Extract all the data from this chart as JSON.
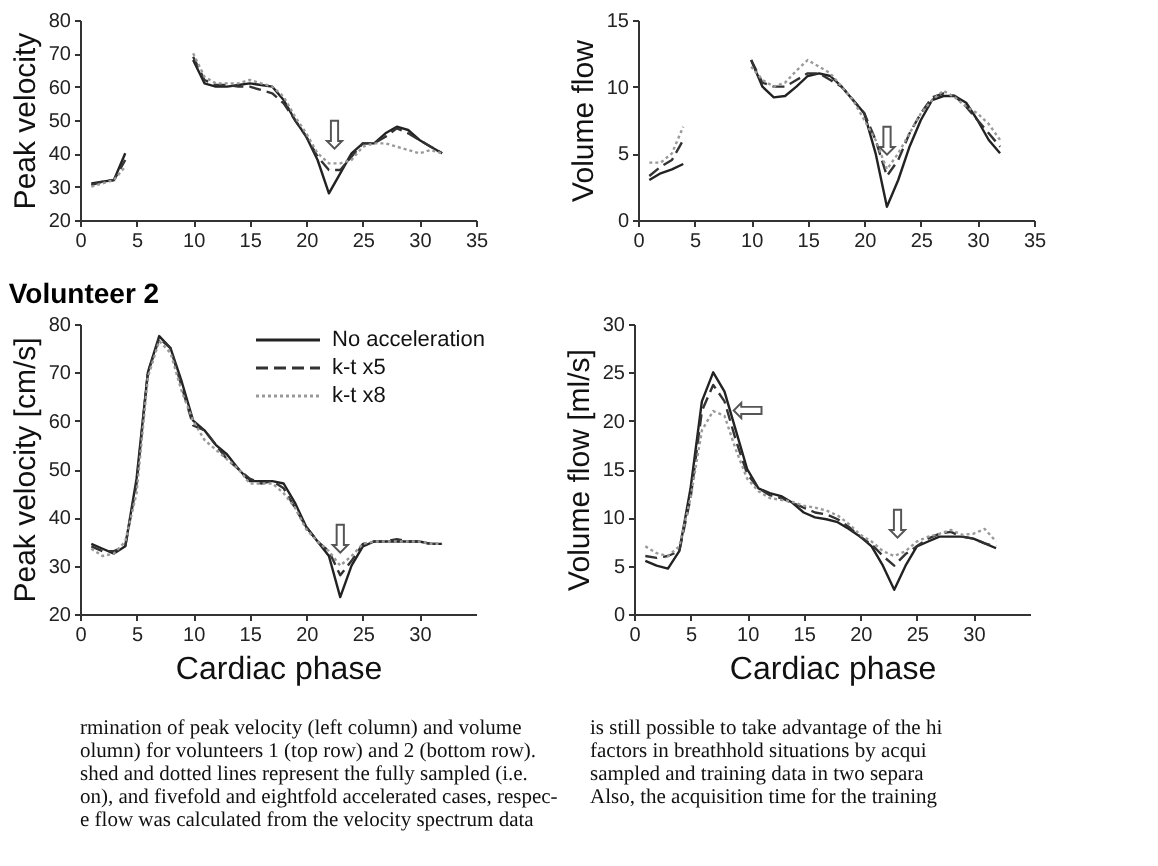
{
  "chart_data": [
    {
      "type": "line",
      "ylabel": "Peak velocity",
      "x": [
        1,
        2,
        3,
        4,
        5,
        6,
        7,
        8,
        9,
        10,
        11,
        12,
        13,
        14,
        15,
        16,
        17,
        18,
        19,
        20,
        21,
        22,
        23,
        24,
        25,
        26,
        27,
        28,
        29,
        30,
        31,
        32
      ],
      "xlim": [
        0,
        35
      ],
      "xticks": [
        0,
        5,
        10,
        15,
        20,
        25,
        30,
        35
      ],
      "ylim": [
        20,
        80
      ],
      "yticks": [
        20,
        30,
        40,
        50,
        60,
        70,
        80
      ],
      "grid": false,
      "legend": false,
      "series": [
        {
          "color": "#222222",
          "line_style": "solid",
          "values": [
            31,
            31.5,
            32,
            40,
            null,
            null,
            null,
            null,
            null,
            68,
            61,
            60,
            60,
            60.5,
            61,
            60.5,
            60,
            56,
            50,
            45,
            38,
            28,
            34,
            40,
            43,
            43,
            46,
            48,
            47,
            44,
            42,
            40
          ]
        },
        {
          "color": "#333333",
          "line_style": "dashed",
          "values": [
            30.5,
            31.5,
            32,
            38,
            null,
            null,
            null,
            null,
            null,
            69,
            62,
            60.5,
            60.5,
            60,
            60,
            59,
            58,
            55,
            50,
            45,
            39,
            35,
            35,
            39,
            43,
            43,
            45,
            47.5,
            46,
            44,
            42,
            40
          ]
        },
        {
          "color": "#999999",
          "line_style": "dotted",
          "values": [
            30,
            31,
            32,
            36,
            null,
            null,
            null,
            null,
            null,
            70,
            63,
            61,
            61,
            61,
            62,
            61,
            60,
            57,
            51,
            46,
            40,
            37,
            37,
            38,
            42,
            43,
            43,
            42,
            41,
            40,
            41,
            40
          ]
        }
      ],
      "annotations": [
        {
          "text": "⇩",
          "x": 22.5,
          "y": 39
        }
      ]
    },
    {
      "type": "line",
      "ylabel": "Volume flow",
      "x": [
        1,
        2,
        3,
        4,
        5,
        6,
        7,
        8,
        9,
        10,
        11,
        12,
        13,
        14,
        15,
        16,
        17,
        18,
        19,
        20,
        21,
        22,
        23,
        24,
        25,
        26,
        27,
        28,
        29,
        30,
        31,
        32
      ],
      "xlim": [
        0,
        35
      ],
      "xticks": [
        0,
        5,
        10,
        15,
        20,
        25,
        30,
        35
      ],
      "ylim": [
        0,
        15
      ],
      "yticks": [
        0,
        5,
        10,
        15
      ],
      "grid": false,
      "legend": false,
      "series": [
        {
          "color": "#222222",
          "line_style": "solid",
          "values": [
            3,
            3.5,
            3.8,
            4.2,
            null,
            null,
            null,
            null,
            null,
            12,
            10,
            9.2,
            9.3,
            10,
            10.8,
            11,
            10.8,
            10,
            9,
            8,
            5,
            1,
            3,
            5.5,
            7.5,
            9,
            9.3,
            9.3,
            8.8,
            7.5,
            6,
            5
          ]
        },
        {
          "color": "#333333",
          "line_style": "dashed",
          "values": [
            3.3,
            4,
            4.5,
            6,
            null,
            null,
            null,
            null,
            null,
            12,
            10.3,
            10,
            10,
            10.5,
            11,
            11,
            10.5,
            10,
            9,
            8,
            6,
            3.3,
            4.5,
            6.5,
            8,
            9.2,
            9.5,
            9.3,
            8.5,
            7.5,
            6.5,
            5.5
          ]
        },
        {
          "color": "#999999",
          "line_style": "dotted",
          "values": [
            4.3,
            4.3,
            5,
            7,
            null,
            null,
            null,
            null,
            null,
            11.5,
            10.5,
            10,
            10.3,
            11.2,
            12,
            11.5,
            11,
            10,
            9,
            7.5,
            6,
            3.8,
            5,
            6.5,
            8,
            9,
            9.7,
            9.2,
            8.5,
            8,
            7.2,
            6
          ]
        }
      ],
      "annotations": [
        {
          "text": "⇩",
          "x": 22,
          "y": 4.3
        }
      ]
    },
    {
      "type": "line",
      "title": "Volunteer 2",
      "xlabel": "Cardiac phase",
      "ylabel": "Peak velocity [cm/s]",
      "x": [
        1,
        2,
        3,
        4,
        5,
        6,
        7,
        8,
        9,
        10,
        11,
        12,
        13,
        14,
        15,
        16,
        17,
        18,
        19,
        20,
        21,
        22,
        23,
        24,
        25,
        26,
        27,
        28,
        29,
        30,
        31,
        32
      ],
      "xlim": [
        0,
        35
      ],
      "xticks": [
        0,
        5,
        10,
        15,
        20,
        25,
        30
      ],
      "ylim": [
        20,
        80
      ],
      "yticks": [
        20,
        30,
        40,
        50,
        60,
        70,
        80
      ],
      "grid": false,
      "legend": "top right",
      "series": [
        {
          "name": "No acceleration",
          "color": "#222222",
          "line_style": "solid",
          "values": [
            34.5,
            33.5,
            32.5,
            34,
            48,
            70,
            77.5,
            75,
            68,
            60,
            58,
            55,
            53,
            50,
            47.5,
            47.5,
            47.5,
            47,
            43,
            38,
            35,
            32,
            23.5,
            30,
            34,
            35,
            35,
            35,
            35,
            35,
            34.5,
            34.5
          ]
        },
        {
          "name": "k-t x5",
          "color": "#333333",
          "line_style": "dashed",
          "values": [
            34,
            33,
            33,
            34,
            47,
            70,
            77,
            75,
            67,
            59,
            58,
            55,
            52,
            50,
            48,
            47,
            47.5,
            46,
            42,
            38,
            35,
            33,
            28,
            31,
            34.5,
            35,
            35,
            35.5,
            35,
            35,
            34.5,
            34.5
          ]
        },
        {
          "name": "k-t x8",
          "color": "#999999",
          "line_style": "dotted",
          "values": [
            33.5,
            32,
            32.5,
            35,
            45,
            69,
            76.5,
            74,
            66,
            60,
            56,
            54,
            52,
            50,
            47,
            47,
            47,
            45,
            42,
            37.5,
            35,
            33,
            30,
            32,
            34.5,
            35,
            35,
            35,
            35,
            35,
            34.5,
            34.5
          ]
        }
      ],
      "annotations": [
        {
          "text": "⇩",
          "x": 23,
          "y": 31
        }
      ]
    },
    {
      "type": "line",
      "xlabel": "Cardiac phase",
      "ylabel": "Volume flow [ml/s]",
      "x": [
        1,
        2,
        3,
        4,
        5,
        6,
        7,
        8,
        9,
        10,
        11,
        12,
        13,
        14,
        15,
        16,
        17,
        18,
        19,
        20,
        21,
        22,
        23,
        24,
        25,
        26,
        27,
        28,
        29,
        30,
        31,
        32
      ],
      "xlim": [
        0,
        35
      ],
      "xticks": [
        0,
        5,
        10,
        15,
        20,
        25,
        30
      ],
      "ylim": [
        0,
        30
      ],
      "yticks": [
        0,
        5,
        10,
        15,
        20,
        25,
        30
      ],
      "grid": false,
      "legend": false,
      "series": [
        {
          "color": "#222222",
          "line_style": "solid",
          "values": [
            5.5,
            5,
            4.7,
            6.5,
            13,
            22,
            25,
            23,
            19,
            15,
            13,
            12.5,
            12.2,
            11.5,
            10.5,
            10,
            9.8,
            9.5,
            8.8,
            8,
            7,
            5,
            2.5,
            5,
            7,
            7.5,
            8,
            8,
            8,
            7.8,
            7.3,
            6.8
          ]
        },
        {
          "color": "#333333",
          "line_style": "dashed",
          "values": [
            6,
            5.8,
            6,
            6.5,
            12,
            21,
            23.7,
            22,
            18,
            14.5,
            13,
            12.3,
            12,
            11.5,
            11,
            10.5,
            10.3,
            9.8,
            9,
            8,
            7.2,
            6,
            5,
            6.2,
            7,
            7.8,
            8.3,
            8.5,
            8,
            7.8,
            7.3,
            7
          ]
        },
        {
          "color": "#999999",
          "line_style": "dotted",
          "values": [
            7,
            6.3,
            6,
            7,
            12,
            19,
            21,
            20.5,
            17,
            14,
            12.7,
            12,
            11.8,
            11.6,
            11.2,
            11,
            10.7,
            10.2,
            9.3,
            8.2,
            7.5,
            6.5,
            6,
            6.5,
            7.5,
            8,
            8.3,
            8.7,
            8.2,
            8.3,
            8.8,
            7.5
          ]
        }
      ],
      "annotations": [
        {
          "text": "⇩",
          "x": 23.3,
          "y": 7
        },
        {
          "text": "⇦",
          "x": 8.6,
          "y": 21
        },
        "rmination of peak velocity (left column) and volume",
        "olumn) for volunteers 1 (top row) and 2 (bottom row).",
        "shed  and dotted lines  represent the fully sampled (i.e.",
        "on), and fivefold and eightfold accelerated cases, respec-",
        "e flow was calculated from the velocity spectrum data",
        "is still possible to take advantage of the hi",
        "factors in breathhold situations by acqui",
        "sampled and training data in two separa",
        "Also, the acquisition time for the training"
      ]
    }
  ]
}
